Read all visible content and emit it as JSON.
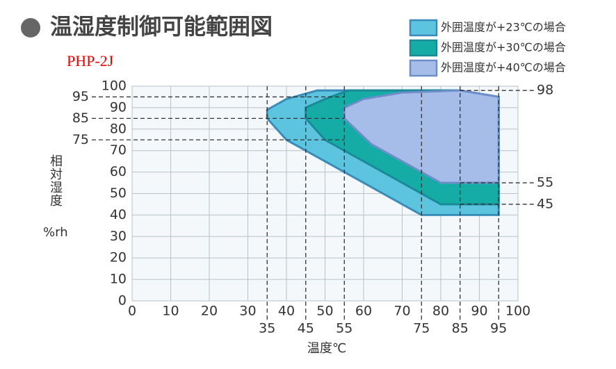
{
  "chart_data": {
    "type": "area-polygon",
    "title": "温湿度制御可能範囲図",
    "subtitle": "PHP-2J",
    "x_label": "温度℃",
    "y_label": "相対湿度",
    "y_unit": "%rh",
    "xlim": [
      0,
      100
    ],
    "xticks": [
      0,
      10,
      20,
      30,
      40,
      50,
      60,
      70,
      80,
      90,
      100
    ],
    "ylim": [
      0,
      100
    ],
    "yticks": [
      0,
      10,
      20,
      30,
      40,
      50,
      60,
      70,
      80,
      90,
      100
    ],
    "grid": true,
    "legend": "top-right",
    "x_refs": [
      35,
      45,
      55,
      75,
      85,
      95
    ],
    "y_refs_left": [
      95,
      85,
      75
    ],
    "y_refs_right": [
      98,
      55,
      45
    ],
    "series": [
      {
        "name": "外囲温度が+23℃の場合",
        "color": "#5cc4de",
        "edge": "#3a8cb8",
        "x": [
          35,
          35,
          40,
          48,
          85,
          95,
          95,
          75,
          40
        ],
        "values": [
          85,
          89,
          94,
          98,
          98,
          95,
          40,
          40,
          75
        ]
      },
      {
        "name": "外囲温度が+30℃の場合",
        "color": "#16aca6",
        "edge": "#1a8a96",
        "x": [
          45,
          45,
          50,
          56,
          85,
          95,
          95,
          80,
          50
        ],
        "values": [
          85,
          90,
          94,
          98,
          98,
          95,
          45,
          45,
          75
        ]
      },
      {
        "name": "外囲温度が+40℃の場合",
        "color": "#a7bde9",
        "edge": "#6d8ec9",
        "x": [
          55,
          55,
          60,
          70,
          85,
          95,
          95,
          80,
          62
        ],
        "values": [
          85,
          90,
          94,
          97,
          98,
          95,
          55,
          55,
          73
        ]
      }
    ]
  }
}
